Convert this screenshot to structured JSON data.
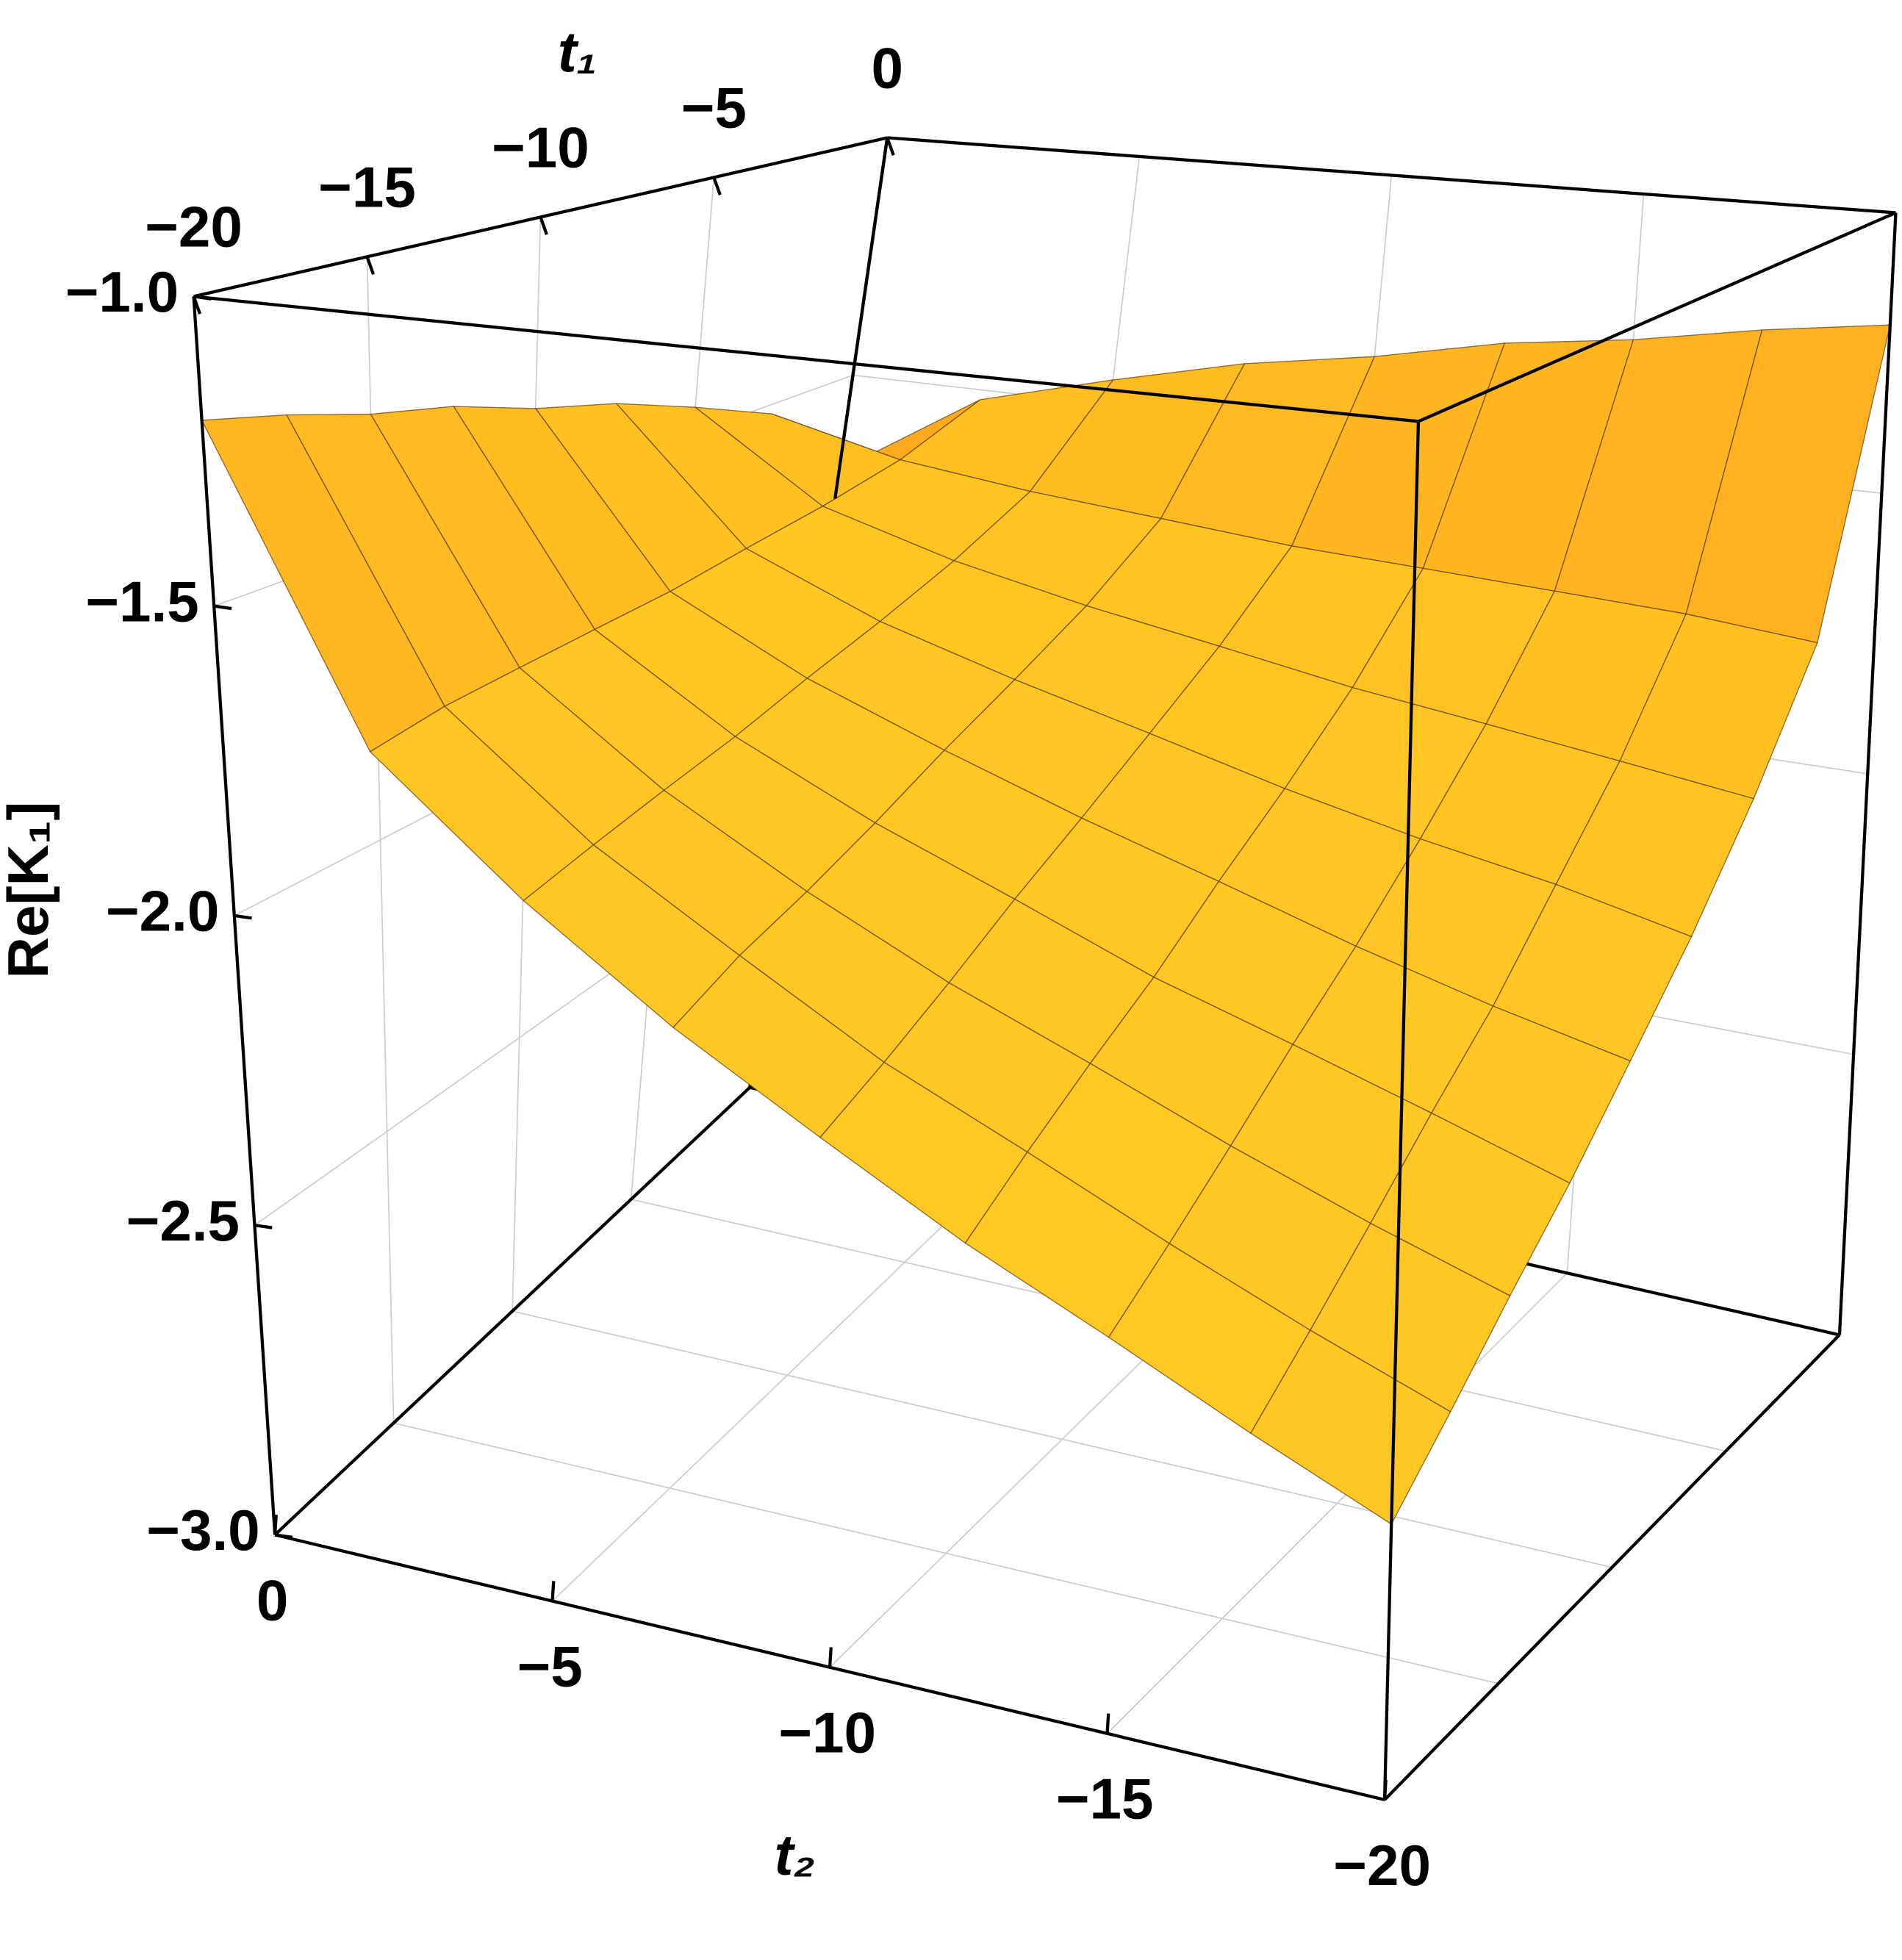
{
  "chart_data": {
    "type": "surface",
    "xlabel": "t₁",
    "ylabel": "t₂",
    "zlabel": "Re[K₁]",
    "x": [
      -20,
      -17.5,
      -15,
      -12.5,
      -10,
      -7.5,
      -5,
      -2.5,
      0
    ],
    "y": [
      -20,
      -17.5,
      -15,
      -12.5,
      -10,
      -7.5,
      -5,
      -2.5,
      0
    ],
    "z": [
      [
        -2.6,
        -2.51,
        -2.41,
        -2.31,
        -2.19,
        -2.06,
        -1.9,
        -1.7,
        -1.2
      ],
      [
        -2.51,
        -2.43,
        -2.34,
        -2.24,
        -2.14,
        -2.01,
        -1.87,
        -1.68,
        -1.23
      ],
      [
        -2.41,
        -2.34,
        -2.26,
        -2.17,
        -2.08,
        -1.97,
        -1.84,
        -1.67,
        -1.27
      ],
      [
        -2.31,
        -2.24,
        -2.17,
        -2.1,
        -2.01,
        -1.92,
        -1.81,
        -1.66,
        -1.3
      ],
      [
        -2.19,
        -2.14,
        -2.08,
        -2.01,
        -1.94,
        -1.86,
        -1.77,
        -1.65,
        -1.35
      ],
      [
        -2.06,
        -2.01,
        -1.97,
        -1.92,
        -1.86,
        -1.8,
        -1.73,
        -1.63,
        -1.39
      ],
      [
        -1.9,
        -1.87,
        -1.84,
        -1.81,
        -1.77,
        -1.73,
        -1.68,
        -1.61,
        -1.45
      ],
      [
        -1.7,
        -1.68,
        -1.67,
        -1.66,
        -1.65,
        -1.63,
        -1.61,
        -1.58,
        -1.52
      ],
      [
        -1.2,
        -1.23,
        -1.27,
        -1.3,
        -1.35,
        -1.39,
        -1.45,
        -1.52,
        -1.7
      ]
    ],
    "color": "#f7931e",
    "xlim": [
      -20,
      0
    ],
    "ylim": [
      -20,
      0
    ],
    "zlim": [
      -3,
      -1
    ],
    "xticks": [
      {
        "value": -20,
        "label": "−20"
      },
      {
        "value": -15,
        "label": "−15"
      },
      {
        "value": -10,
        "label": "−10"
      },
      {
        "value": -5,
        "label": "−5"
      },
      0
    ],
    "yticks": [
      0,
      {
        "value": -5,
        "label": "−5"
      },
      {
        "value": -10,
        "label": "−10"
      },
      {
        "value": -15,
        "label": "−15"
      },
      {
        "value": -20,
        "label": "−20"
      }
    ],
    "zticks": [
      {
        "value": -3,
        "label": "−3.0"
      },
      {
        "value": -2.5,
        "label": "−2.5"
      },
      {
        "value": -2,
        "label": "−2.0"
      },
      {
        "value": -1.5,
        "label": "−1.5"
      },
      {
        "value": -1,
        "label": "−1.0"
      }
    ],
    "grid": true
  }
}
